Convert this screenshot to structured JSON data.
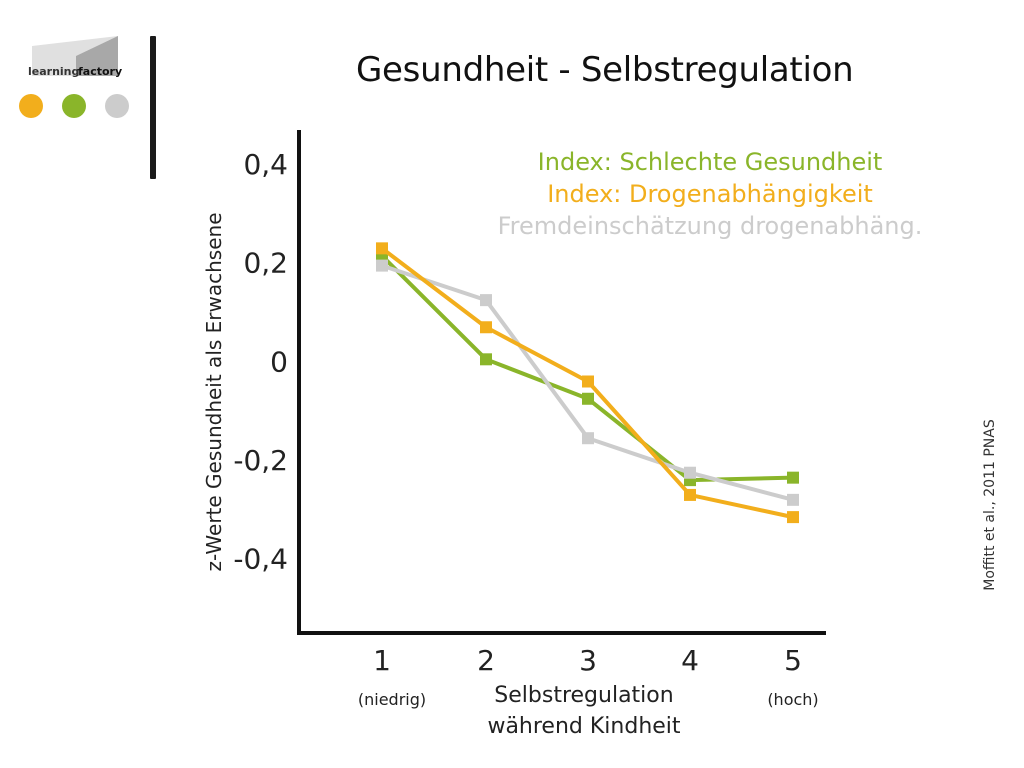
{
  "title": "Gesundheit - Selbstregulation",
  "logo": {
    "text": "learning factory",
    "dot_colors": [
      "#F2AE1C",
      "#8AB52A",
      "#CCCCCC"
    ]
  },
  "citation": "Moffitt et al., 2011 PNAS",
  "chart_data": {
    "type": "line",
    "ylabel": "z-Werte Gesundheit als Erwachsene",
    "xlabel": [
      "Selbstregulation",
      "während Kindheit"
    ],
    "x_low_label": "(niedrig)",
    "x_high_label": "(hoch)",
    "categories": [
      "1",
      "2",
      "3",
      "4",
      "5"
    ],
    "ytick_labels": [
      "0,4",
      "0,2",
      "0",
      "-0,2",
      "-0,4"
    ],
    "yticks": [
      0.4,
      0.2,
      0,
      -0.2,
      -0.4
    ],
    "ylim": [
      -0.555,
      0.465
    ],
    "grid": false,
    "legend_position": "top-right",
    "series": [
      {
        "name": "Index: Schlechte Gesundheit",
        "color": "#8AB52A",
        "values": [
          0.21,
          0.0,
          -0.08,
          -0.245,
          -0.24
        ]
      },
      {
        "name": "Fremdeinschätzung drogenabhäng.",
        "color": "#CCCCCC",
        "values": [
          0.19,
          0.12,
          -0.16,
          -0.23,
          -0.285
        ]
      },
      {
        "name": "Index: Drogenabhängigkeit",
        "color": "#F2AE1C",
        "values": [
          0.225,
          0.065,
          -0.045,
          -0.275,
          -0.32
        ]
      }
    ],
    "legend_order": [
      0,
      2,
      1
    ]
  }
}
